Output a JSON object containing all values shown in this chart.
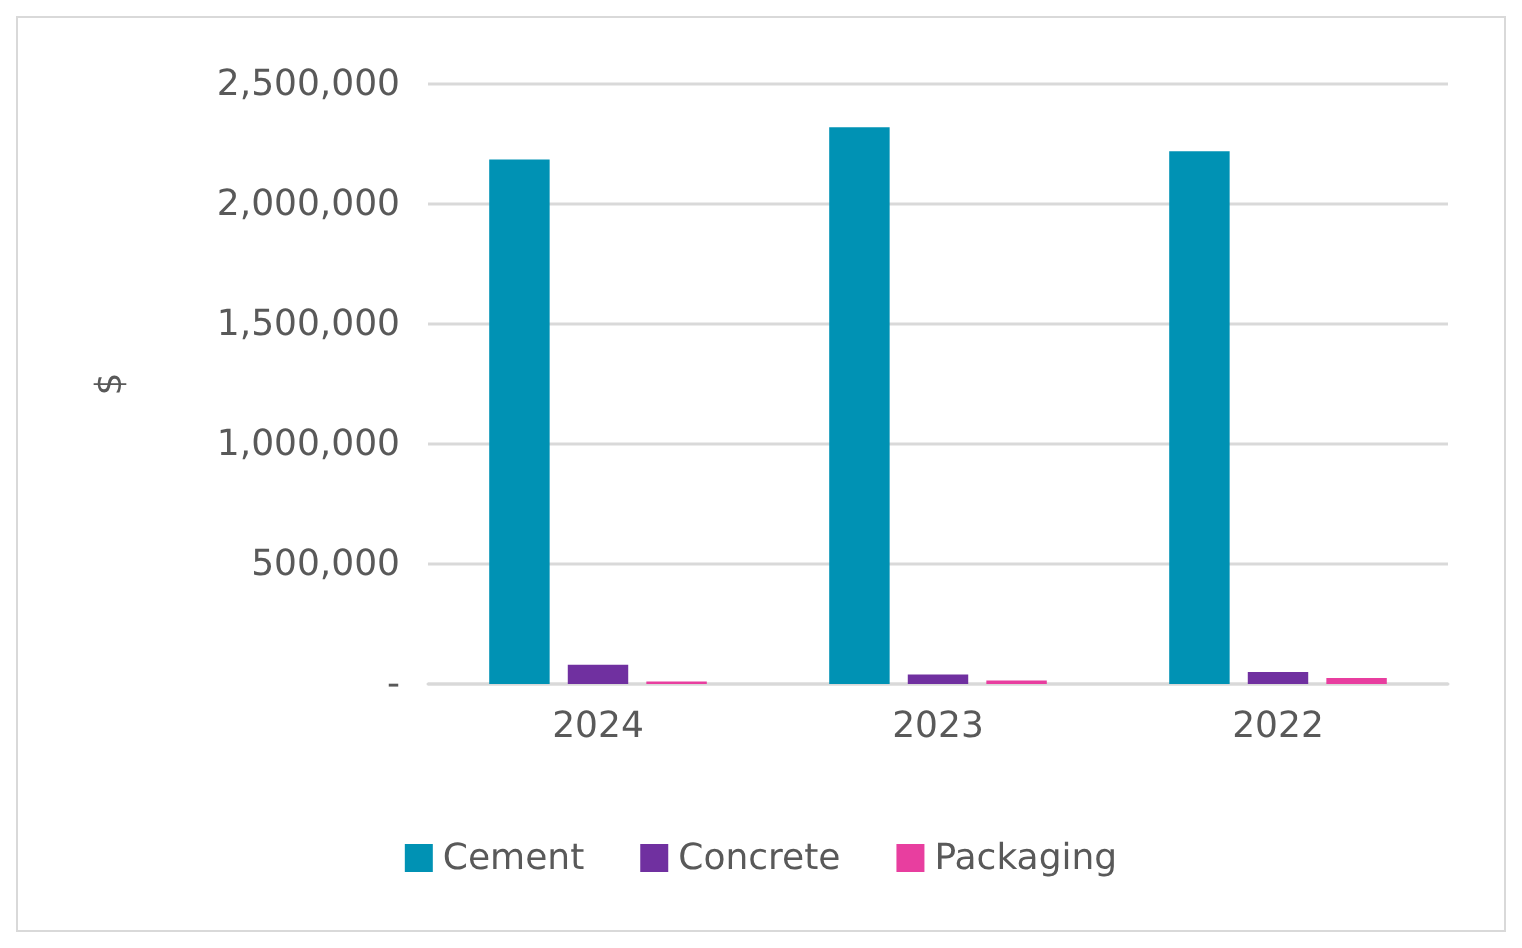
{
  "chart_data": {
    "type": "bar",
    "ylabel": "$",
    "categories": [
      "2024",
      "2023",
      "2022"
    ],
    "series": [
      {
        "name": "Cement",
        "color": "#0092b4",
        "values": [
          2185000,
          2320000,
          2220000
        ]
      },
      {
        "name": "Concrete",
        "color": "#7030a0",
        "values": [
          80000,
          40000,
          50000
        ]
      },
      {
        "name": "Packaging",
        "color": "#e83e9f",
        "values": [
          10000,
          15000,
          25000
        ]
      }
    ],
    "ylim": [
      0,
      2500000
    ],
    "yticks": [
      {
        "value": 0,
        "label": "-"
      },
      {
        "value": 500000,
        "label": "500,000"
      },
      {
        "value": 1000000,
        "label": "1,000,000"
      },
      {
        "value": 1500000,
        "label": "1,500,000"
      },
      {
        "value": 2000000,
        "label": "2,000,000"
      },
      {
        "value": 2500000,
        "label": "2,500,000"
      }
    ],
    "grid": "y",
    "legend": "bottom"
  }
}
